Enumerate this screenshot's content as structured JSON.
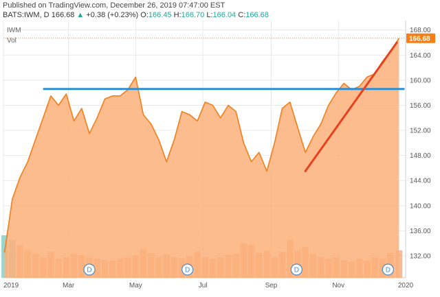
{
  "header": {
    "published": "Published on TradingView.com, December 26, 2019 07:47:00 EST",
    "symbol": "BATS:IWM, D",
    "last": "166.68",
    "change_arrow": "▲",
    "change": "+0.38 (+0.23%)",
    "o_label": "O:",
    "o_value": "166.45",
    "h_label": "H:",
    "h_value": "166.70",
    "l_label": "L:",
    "l_value": "166.04",
    "c_label": "C:",
    "c_value": "166.68"
  },
  "pane": {
    "symbol_label": "IWM",
    "vol_label": "Vol"
  },
  "colors": {
    "price_line": "#f07f1c",
    "price_fill": "#fbb07a",
    "volume": "#f2a77a",
    "volume_early": "#7fc8c0",
    "resistance": "#2a8fd6",
    "trend": "#e8411d",
    "last_price_bg": "#f57f17",
    "grid": "#e8e8e8",
    "dividend_marker": "#4a8bc2"
  },
  "chart_data": {
    "type": "area",
    "title": "",
    "xlabel": "",
    "ylabel": "",
    "ylim": [
      128.5,
      169.5
    ],
    "y_ticks": [
      "132.00",
      "136.00",
      "140.00",
      "144.00",
      "148.00",
      "152.00",
      "156.00",
      "160.00",
      "164.00",
      "168.00"
    ],
    "y_tick_values": [
      132,
      136,
      140,
      144,
      148,
      152,
      156,
      160,
      164,
      168
    ],
    "x_labels": [
      "2019",
      "Mar",
      "May",
      "Jul",
      "Sep",
      "Nov",
      "2020"
    ],
    "x_label_dates": [
      "2019-01-01",
      "2019-03-01",
      "2019-05-01",
      "2019-07-01",
      "2019-09-01",
      "2019-11-01",
      "2020-01-01"
    ],
    "last_price_label": "166.68",
    "last_price": 166.68,
    "series": [
      {
        "x": [
          "2019-01-02",
          "2019-01-09",
          "2019-01-16",
          "2019-01-23",
          "2019-01-30",
          "2019-02-06",
          "2019-02-13",
          "2019-02-20",
          "2019-02-27",
          "2019-03-06",
          "2019-03-13",
          "2019-03-20",
          "2019-03-27",
          "2019-04-03",
          "2019-04-10",
          "2019-04-17",
          "2019-04-24",
          "2019-05-01",
          "2019-05-08",
          "2019-05-15",
          "2019-05-22",
          "2019-05-29",
          "2019-06-05",
          "2019-06-12",
          "2019-06-19",
          "2019-06-26",
          "2019-07-03",
          "2019-07-10",
          "2019-07-17",
          "2019-07-24",
          "2019-07-31",
          "2019-08-07",
          "2019-08-14",
          "2019-08-21",
          "2019-08-28",
          "2019-09-04",
          "2019-09-11",
          "2019-09-18",
          "2019-09-25",
          "2019-10-02",
          "2019-10-09",
          "2019-10-16",
          "2019-10-23",
          "2019-10-30",
          "2019-11-06",
          "2019-11-13",
          "2019-11-20",
          "2019-11-27",
          "2019-12-04",
          "2019-12-11",
          "2019-12-18",
          "2019-12-26"
        ],
        "values": [
          132.5,
          141.0,
          144.5,
          147.0,
          150.5,
          154.0,
          157.5,
          156.0,
          157.8,
          153.5,
          155.5,
          151.5,
          154.0,
          157.0,
          157.5,
          157.5,
          158.5,
          160.5,
          154.5,
          153.0,
          150.5,
          147.0,
          150.5,
          155.0,
          154.5,
          153.5,
          156.5,
          156.0,
          154.0,
          156.0,
          155.0,
          150.0,
          147.0,
          148.5,
          145.5,
          150.0,
          155.5,
          156.5,
          152.5,
          148.5,
          151.0,
          153.0,
          156.0,
          158.0,
          159.5,
          158.5,
          159.0,
          160.5,
          161.0,
          163.0,
          164.5,
          166.68
        ]
      }
    ],
    "volume_relative": [
      0.62,
      0.55,
      0.48,
      0.4,
      0.35,
      0.3,
      0.38,
      0.28,
      0.3,
      0.35,
      0.33,
      0.3,
      0.28,
      0.26,
      0.25,
      0.28,
      0.3,
      0.33,
      0.42,
      0.36,
      0.3,
      0.34,
      0.3,
      0.28,
      0.32,
      0.38,
      0.3,
      0.28,
      0.3,
      0.34,
      0.35,
      0.5,
      0.48,
      0.36,
      0.4,
      0.3,
      0.38,
      0.55,
      0.4,
      0.45,
      0.35,
      0.3,
      0.28,
      0.3,
      0.26,
      0.24,
      0.28,
      0.25,
      0.3,
      0.28,
      0.36,
      0.4
    ],
    "annotations": [
      {
        "type": "horizontal_line",
        "name": "resistance",
        "value": 158.6,
        "from": "2019-02-06",
        "to": "2019-12-31"
      },
      {
        "type": "trend_line",
        "name": "trendline",
        "from": {
          "x": "2019-10-02",
          "y": 145.5
        },
        "to": {
          "x": "2019-12-24",
          "y": 166.0
        }
      }
    ],
    "dividend_markers": [
      {
        "date": "2019-03-20",
        "label": "D"
      },
      {
        "date": "2019-06-17",
        "label": "D"
      },
      {
        "date": "2019-09-24",
        "label": "D"
      },
      {
        "date": "2019-12-16",
        "label": "D"
      }
    ]
  }
}
